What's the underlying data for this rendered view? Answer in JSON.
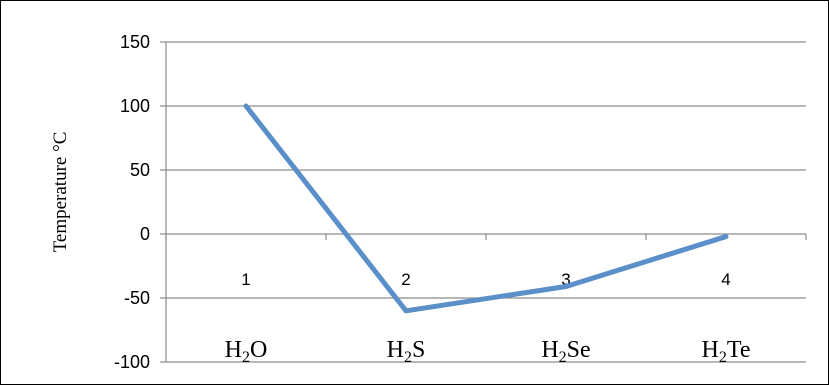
{
  "chart_data": {
    "type": "line",
    "title": "",
    "xlabel": "",
    "ylabel": "Temperature °C",
    "categories": [
      "1",
      "2",
      "3",
      "4"
    ],
    "category_compounds": [
      {
        "base": "H",
        "sub": "2",
        "rest": "O"
      },
      {
        "base": "H",
        "sub": "2",
        "rest": "S"
      },
      {
        "base": "H",
        "sub": "2",
        "rest": "Se"
      },
      {
        "base": "H",
        "sub": "2",
        "rest": "Te"
      }
    ],
    "series": [
      {
        "values": [
          100,
          -60,
          -41,
          -2
        ],
        "color": "#5b8fc9"
      }
    ],
    "ylim": [
      -100,
      150
    ],
    "yticks": [
      150,
      100,
      50,
      0,
      -50,
      -100
    ],
    "ytick_labels": [
      "150",
      "100",
      "50",
      "0",
      "-50",
      "-100"
    ],
    "grid": true,
    "gridline_color": "#8c8c8c",
    "axis_color": "#8c8c8c"
  }
}
